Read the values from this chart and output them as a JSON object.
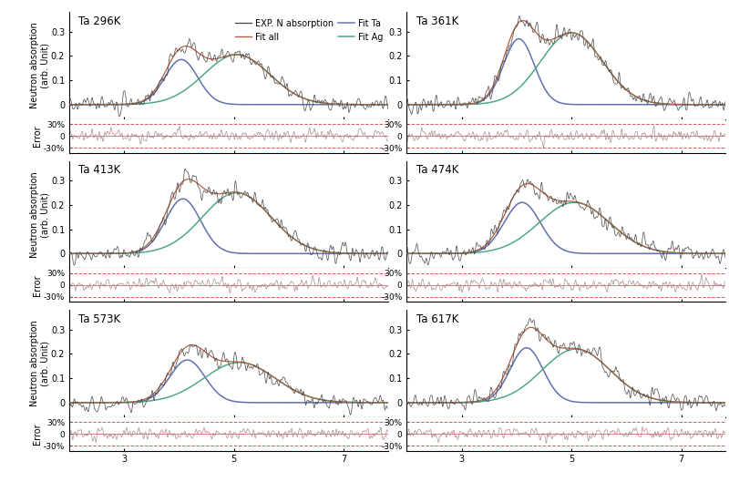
{
  "temperatures": [
    "296K",
    "361K",
    "413K",
    "474K",
    "573K",
    "617K"
  ],
  "xlim": [
    2.0,
    7.8
  ],
  "ylim_main": [
    -0.06,
    0.38
  ],
  "ylim_error": [
    -0.42,
    0.42
  ],
  "yticks_main": [
    0.0,
    0.1,
    0.2,
    0.3
  ],
  "ytick_labels_main": [
    "0",
    "0.1",
    "0.2",
    "0.3"
  ],
  "error_ticks": [
    -0.3,
    0.0,
    0.3
  ],
  "error_labels": [
    "-30%",
    "0",
    "30%"
  ],
  "color_exp": "#444444",
  "color_fit_all": "#b06040",
  "color_fit_ta": "#6070b0",
  "color_fit_ag": "#50a888",
  "color_error_line": "#a08888",
  "color_err_bound": "#cc4444",
  "bg_color": "#ffffff",
  "title_fontsize": 8.5,
  "label_fontsize": 7,
  "tick_fontsize": 7,
  "legend_fontsize": 7,
  "ta_peak_centers": [
    4.04,
    4.04,
    4.07,
    4.1,
    4.15,
    4.18
  ],
  "ag_peak_centers": [
    5.05,
    5.0,
    5.05,
    5.05,
    5.1,
    5.08
  ],
  "ta_peak_heights": [
    0.185,
    0.27,
    0.225,
    0.21,
    0.175,
    0.225
  ],
  "ag_peak_heights": [
    0.205,
    0.295,
    0.25,
    0.21,
    0.165,
    0.22
  ],
  "ta_peak_widths": [
    0.3,
    0.28,
    0.32,
    0.33,
    0.32,
    0.3
  ],
  "ag_peak_widths": [
    0.6,
    0.56,
    0.62,
    0.64,
    0.65,
    0.62
  ],
  "noise_amplitude": 0.018,
  "noise_freq_factor": 3.5,
  "error_noise_amplitude": 0.08,
  "xticks": [
    3,
    5,
    7
  ]
}
